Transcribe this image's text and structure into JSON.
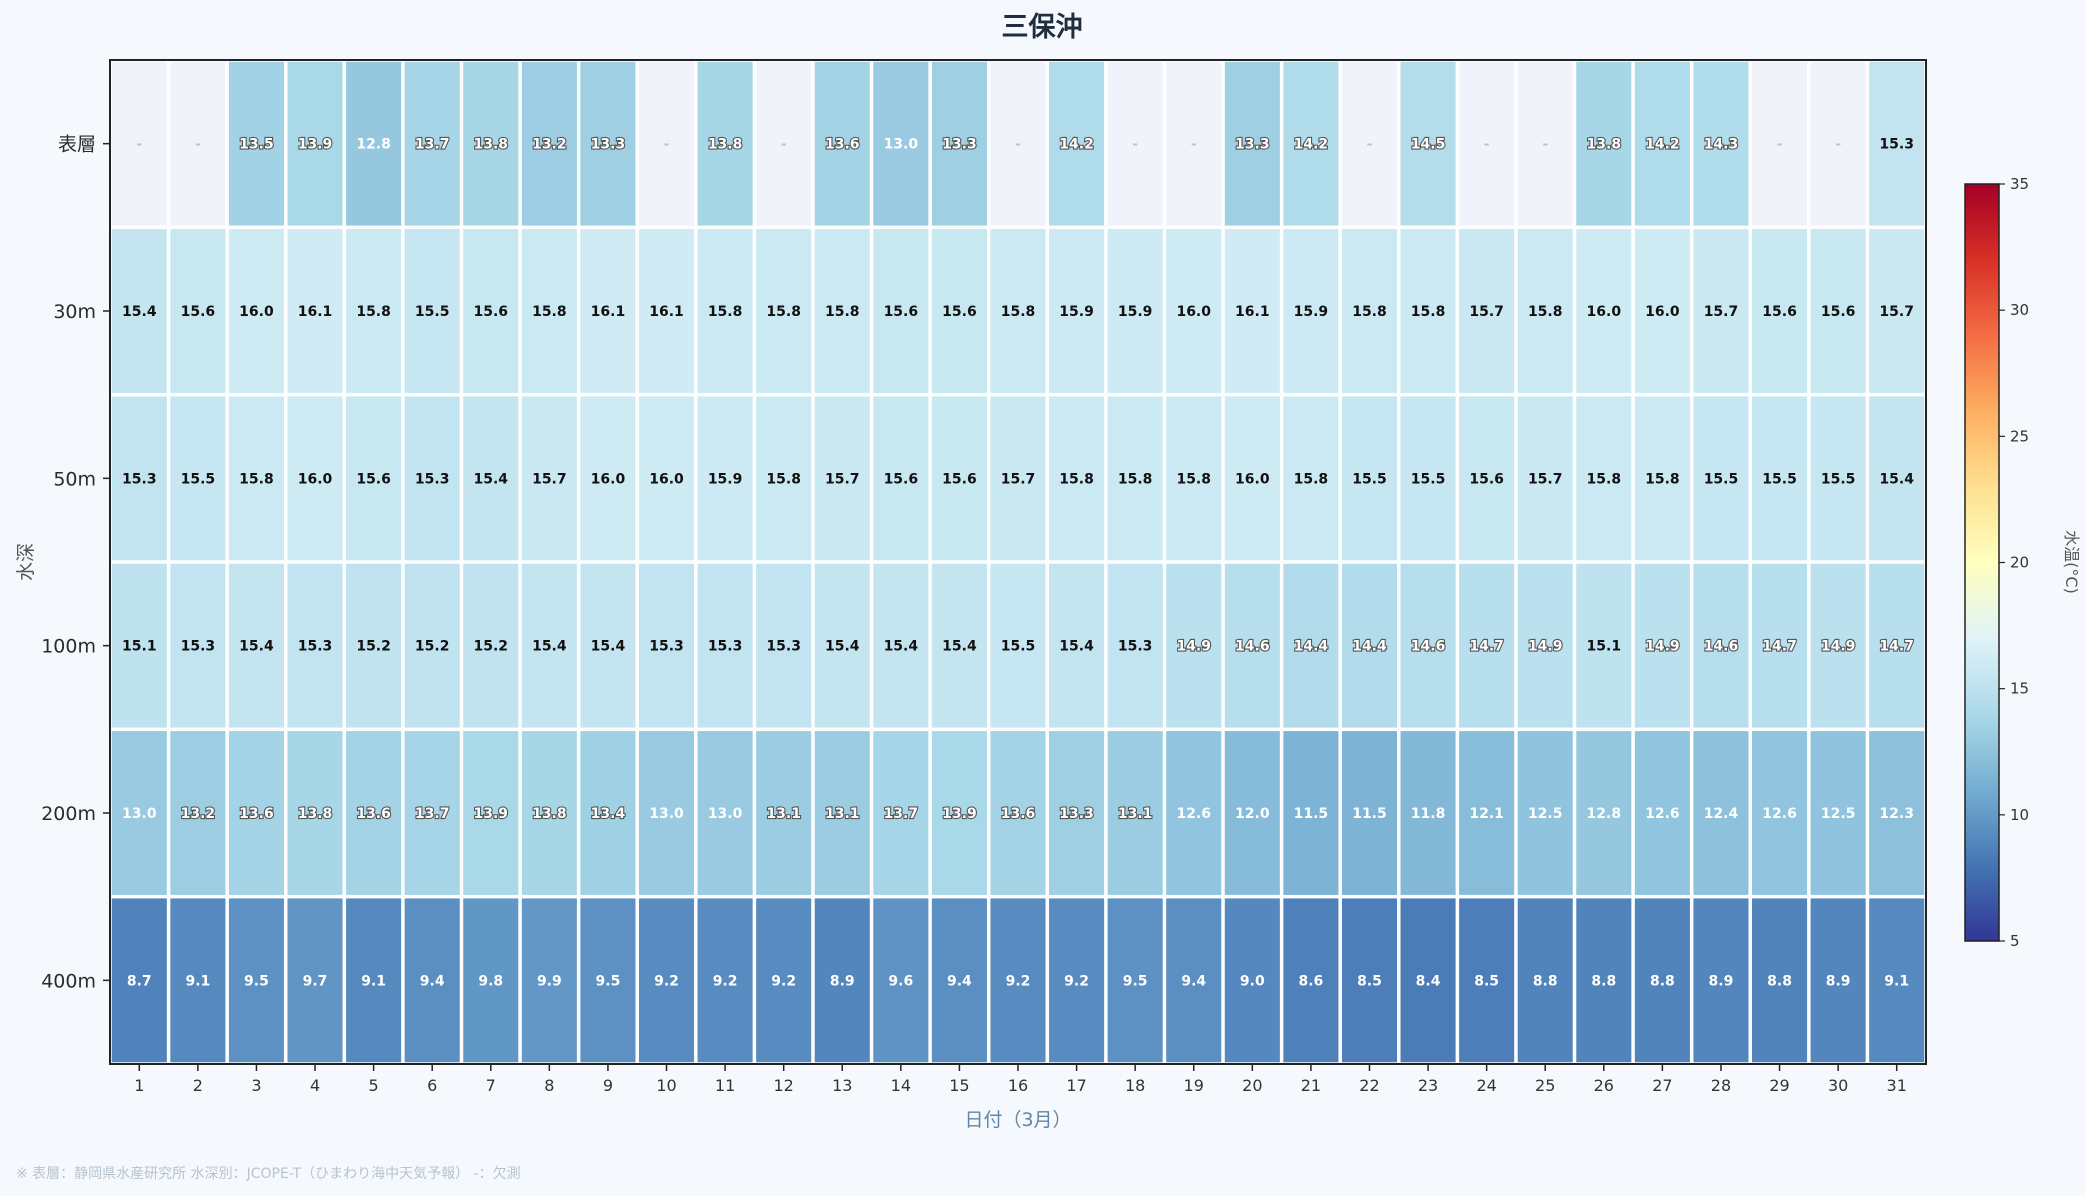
{
  "chart_data": {
    "type": "heatmap",
    "title": "三保沖",
    "xlabel": "日付（3月）",
    "ylabel": "水深",
    "colorbar_label": "水温(°C)",
    "colorbar_range": [
      5,
      35
    ],
    "colorbar_ticks": [
      5,
      10,
      15,
      20,
      25,
      30,
      35
    ],
    "colormap": "RdYlBu_r",
    "missing_marker": "-",
    "rows": [
      "表層",
      "30m",
      "50m",
      "100m",
      "200m",
      "400m"
    ],
    "columns": [
      "1",
      "2",
      "3",
      "4",
      "5",
      "6",
      "7",
      "8",
      "9",
      "10",
      "11",
      "12",
      "13",
      "14",
      "15",
      "16",
      "17",
      "18",
      "19",
      "20",
      "21",
      "22",
      "23",
      "24",
      "25",
      "26",
      "27",
      "28",
      "29",
      "30",
      "31"
    ],
    "values": [
      [
        null,
        null,
        13.5,
        13.9,
        12.8,
        13.7,
        13.8,
        13.2,
        13.3,
        null,
        13.8,
        null,
        13.6,
        13.0,
        13.3,
        null,
        14.2,
        null,
        null,
        13.3,
        14.2,
        null,
        14.5,
        null,
        null,
        13.8,
        14.2,
        14.3,
        null,
        null,
        15.3
      ],
      [
        15.4,
        15.6,
        16.0,
        16.1,
        15.8,
        15.5,
        15.6,
        15.8,
        16.1,
        16.1,
        15.8,
        15.8,
        15.8,
        15.6,
        15.6,
        15.8,
        15.9,
        15.9,
        16.0,
        16.1,
        15.9,
        15.8,
        15.8,
        15.7,
        15.8,
        16.0,
        16.0,
        15.7,
        15.6,
        15.6,
        15.7
      ],
      [
        15.3,
        15.5,
        15.8,
        16.0,
        15.6,
        15.3,
        15.4,
        15.7,
        16.0,
        16.0,
        15.9,
        15.8,
        15.7,
        15.6,
        15.6,
        15.7,
        15.8,
        15.8,
        15.8,
        16.0,
        15.8,
        15.5,
        15.5,
        15.6,
        15.7,
        15.8,
        15.8,
        15.5,
        15.5,
        15.5,
        15.4
      ],
      [
        15.1,
        15.3,
        15.4,
        15.3,
        15.2,
        15.2,
        15.2,
        15.4,
        15.4,
        15.3,
        15.3,
        15.3,
        15.4,
        15.4,
        15.4,
        15.5,
        15.4,
        15.3,
        14.9,
        14.6,
        14.4,
        14.4,
        14.6,
        14.7,
        14.9,
        15.1,
        14.9,
        14.6,
        14.7,
        14.9,
        14.7
      ],
      [
        13.0,
        13.2,
        13.6,
        13.8,
        13.6,
        13.7,
        13.9,
        13.8,
        13.4,
        13.0,
        13.0,
        13.1,
        13.1,
        13.7,
        13.9,
        13.6,
        13.3,
        13.1,
        12.6,
        12.0,
        11.5,
        11.5,
        11.8,
        12.1,
        12.5,
        12.8,
        12.6,
        12.4,
        12.6,
        12.5,
        12.3
      ],
      [
        8.7,
        9.1,
        9.5,
        9.7,
        9.1,
        9.4,
        9.8,
        9.9,
        9.5,
        9.2,
        9.2,
        9.2,
        8.9,
        9.6,
        9.4,
        9.2,
        9.2,
        9.5,
        9.4,
        9.0,
        8.6,
        8.5,
        8.4,
        8.5,
        8.8,
        8.8,
        8.8,
        8.9,
        8.8,
        8.9,
        9.1
      ]
    ]
  },
  "footnote": "※ 表層：静岡県水産研究所  水深別：JCOPE-T（ひまわり海中天気予報）  -：欠測",
  "colors": {
    "background": "#f5f9fd",
    "missing_cell": "#f0f4fa",
    "cell_border": "#ffffff"
  }
}
